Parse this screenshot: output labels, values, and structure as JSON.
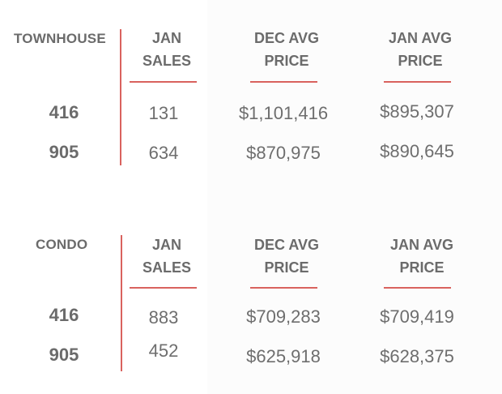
{
  "sections": [
    {
      "label": "TOWNHOUSE",
      "headers": [
        {
          "line1": "JAN",
          "line2": "SALES"
        },
        {
          "line1": "DEC AVG",
          "line2": "PRICE"
        },
        {
          "line1": "JAN AVG",
          "line2": "PRICE"
        }
      ],
      "rows": [
        {
          "label": "416",
          "values": [
            "131",
            "$1,101,416",
            "$895,307"
          ]
        },
        {
          "label": "905",
          "values": [
            "634",
            "$870,975",
            "$890,645"
          ]
        }
      ]
    },
    {
      "label": "CONDO",
      "headers": [
        {
          "line1": "JAN",
          "line2": "SALES"
        },
        {
          "line1": "DEC AVG",
          "line2": "PRICE"
        },
        {
          "line1": "JAN AVG",
          "line2": "PRICE"
        }
      ],
      "rows": [
        {
          "label": "416",
          "values": [
            "883",
            "$709,283",
            "$709,419"
          ]
        },
        {
          "label": "905",
          "values": [
            "452",
            "$625,918",
            "$628,375"
          ]
        }
      ]
    }
  ],
  "colors": {
    "accent": "#d9625e",
    "text": "#6e6e6e"
  }
}
